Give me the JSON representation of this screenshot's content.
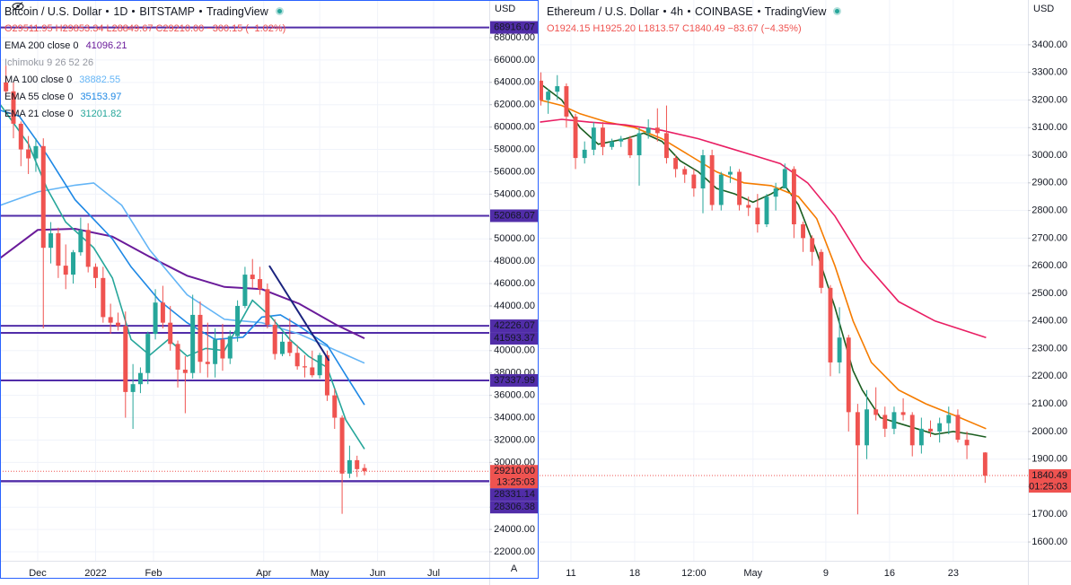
{
  "chart_data": [
    {
      "type": "candlestick",
      "title": "Bitcoin / U.S. Dollar",
      "interval": "1D",
      "exchange": "BITSTAMP",
      "source": "TradingView",
      "ohlc": {
        "open": "O29511.95",
        "high": "H29853.34",
        "low": "L28849.67",
        "close": "C29210.00",
        "change": "−300.15 (−1.02%)"
      },
      "currency": "USD",
      "scale_mode": "A",
      "grid": true,
      "up_color": "#26a69a",
      "down_color": "#ef5350",
      "xlim": [
        9.8,
        271.8
      ],
      "xticks": [
        {
          "value": 30,
          "label": "Dec"
        },
        {
          "value": 61,
          "label": "2022"
        },
        {
          "value": 92,
          "label": "Feb"
        },
        {
          "value": 151,
          "label": "Apr"
        },
        {
          "value": 181,
          "label": "May"
        },
        {
          "value": 212,
          "label": "Jun"
        },
        {
          "value": 242,
          "label": "Jul"
        }
      ],
      "ylim": [
        21200,
        71370
      ],
      "yticks": [
        {
          "value": 22000,
          "label": "22000.00"
        },
        {
          "value": 24000,
          "label": "24000.00"
        },
        {
          "value": 26000,
          "label": "26000.00"
        },
        {
          "value": 28000,
          "label": "28000.00"
        },
        {
          "value": 30000,
          "label": "30000.00"
        },
        {
          "value": 32000,
          "label": "32000.00"
        },
        {
          "value": 34000,
          "label": "34000.00"
        },
        {
          "value": 36000,
          "label": "36000.00"
        },
        {
          "value": 38000,
          "label": "38000.00"
        },
        {
          "value": 40000,
          "label": "40000.00"
        },
        {
          "value": 42000,
          "label": "42000.00"
        },
        {
          "value": 44000,
          "label": "44000.00"
        },
        {
          "value": 46000,
          "label": "46000.00"
        },
        {
          "value": 48000,
          "label": "48000.00"
        },
        {
          "value": 50000,
          "label": "50000.00"
        },
        {
          "value": 52000,
          "label": "52000.00"
        },
        {
          "value": 54000,
          "label": "54000.00"
        },
        {
          "value": 56000,
          "label": "56000.00"
        },
        {
          "value": 58000,
          "label": "58000.00"
        },
        {
          "value": 60000,
          "label": "60000.00"
        },
        {
          "value": 62000,
          "label": "62000.00"
        },
        {
          "value": 64000,
          "label": "64000.00"
        },
        {
          "value": 66000,
          "label": "66000.00"
        },
        {
          "value": 68000,
          "label": "68000.00"
        }
      ],
      "x": [
        13,
        17,
        21,
        25,
        29,
        33,
        37,
        41,
        45,
        49,
        53,
        57,
        61,
        65,
        69,
        73,
        77,
        81,
        85,
        89,
        93,
        97,
        101,
        105,
        109,
        113,
        117,
        121,
        125,
        129,
        133,
        137,
        141,
        145,
        149,
        153,
        157,
        161,
        165,
        169,
        173,
        177,
        181,
        185,
        189,
        193,
        197,
        201,
        205
      ],
      "open": [
        64000,
        63200,
        60300,
        58000,
        57200,
        58300,
        49200,
        50500,
        47600,
        46800,
        48800,
        50800,
        47500,
        46500,
        43000,
        42500,
        42200,
        36300,
        37000,
        38000,
        41500,
        44300,
        42500,
        40600,
        38300,
        38000,
        43200,
        39000,
        38800,
        41000,
        39300,
        41300,
        44000,
        46800,
        46400,
        45500,
        42300,
        39700,
        40800,
        39800,
        38600,
        38500,
        37800,
        39600,
        36000,
        34000,
        29000,
        30200,
        29500
      ],
      "high": [
        65500,
        64000,
        60500,
        59200,
        59000,
        59000,
        51500,
        51000,
        49500,
        49000,
        51900,
        51400,
        47800,
        47500,
        44200,
        43400,
        43500,
        38800,
        38500,
        41700,
        45500,
        45800,
        44000,
        40900,
        39500,
        45000,
        44400,
        42500,
        42000,
        42400,
        41800,
        44500,
        47500,
        48200,
        47500,
        46000,
        42800,
        41500,
        42900,
        40500,
        39600,
        40000,
        39800,
        40000,
        36600,
        34200,
        31500,
        30600,
        29850
      ],
      "low": [
        62800,
        59000,
        56500,
        55800,
        56000,
        42000,
        47800,
        46500,
        45500,
        46000,
        48500,
        47000,
        45600,
        42500,
        41500,
        41800,
        34000,
        33000,
        36200,
        37000,
        41000,
        42000,
        40000,
        36700,
        34400,
        37500,
        38000,
        37600,
        37600,
        38200,
        38800,
        40800,
        43800,
        45600,
        45000,
        42000,
        39200,
        39500,
        39500,
        38300,
        37600,
        37600,
        37500,
        35500,
        33000,
        25400,
        28600,
        28700,
        28850
      ],
      "close": [
        63200,
        60300,
        58000,
        57200,
        58300,
        49200,
        50500,
        47600,
        46800,
        48800,
        50800,
        47500,
        46500,
        43000,
        42500,
        42200,
        36300,
        37000,
        38000,
        41500,
        44300,
        42500,
        40600,
        38300,
        38000,
        43200,
        39000,
        38800,
        41000,
        39300,
        41300,
        44000,
        46800,
        46400,
        45500,
        42300,
        39700,
        40800,
        39800,
        38600,
        38500,
        37800,
        39600,
        36000,
        34000,
        29000,
        30200,
        29400,
        29210
      ],
      "indicators": [
        {
          "name": "EMA 200 close 0",
          "value": 41096.21,
          "color": "#6a1b9a",
          "x": [
            10,
            30,
            50,
            70,
            90,
            110,
            130,
            150,
            170,
            190,
            205
          ],
          "values": [
            48300,
            50800,
            50900,
            50200,
            48400,
            46700,
            45700,
            45500,
            44200,
            42300,
            41100
          ]
        },
        {
          "name": "Ichimoku 9 26 52 26"
        },
        {
          "name": "MA 100 close 0",
          "value": 38882.55,
          "color": "#64b5f6",
          "x": [
            10,
            30,
            50,
            60,
            75,
            90,
            110,
            130,
            150,
            170,
            190,
            205
          ],
          "values": [
            53000,
            54200,
            54800,
            55000,
            53000,
            49000,
            45000,
            42800,
            42500,
            41500,
            40000,
            38880
          ]
        },
        {
          "name": "EMA 55 close 0",
          "value": 35153.97,
          "color": "#1e88e5",
          "x": [
            10,
            20,
            35,
            50,
            70,
            80,
            95,
            110,
            125,
            140,
            150,
            160,
            170,
            185,
            195,
            205
          ],
          "values": [
            61500,
            61000,
            57500,
            53500,
            50000,
            47500,
            44500,
            42500,
            41000,
            41200,
            43000,
            43200,
            42200,
            40500,
            37800,
            35150
          ]
        },
        {
          "name": "EMA 21 close 0",
          "value": 31201.82,
          "color": "#26a69a",
          "x": [
            10,
            25,
            35,
            45,
            60,
            70,
            80,
            90,
            100,
            110,
            120,
            130,
            145,
            155,
            165,
            175,
            185,
            195,
            205
          ],
          "values": [
            62000,
            58500,
            54500,
            51500,
            49200,
            46500,
            41000,
            39600,
            41000,
            39500,
            40200,
            40000,
            44500,
            43000,
            41000,
            39500,
            38500,
            33800,
            31200
          ]
        }
      ],
      "trend_lines": [
        {
          "color": "#1a237e",
          "x": [
            154,
            186
          ],
          "values": [
            47600,
            39100
          ]
        }
      ],
      "level_color": "#512da8",
      "levels": [
        68916.07,
        52068.07,
        42226.07,
        41593.37,
        37337.99,
        28331.14,
        28306.38
      ],
      "last_price": {
        "value": 29210,
        "label": "29210.00"
      },
      "countdown": "13:25:03"
    },
    {
      "type": "candlestick",
      "title": "Ethereum / U.S. Dollar",
      "interval": "4h",
      "exchange": "COINBASE",
      "source": "TradingView",
      "ohlc": {
        "open": "O1924.15",
        "high": "H1925.20",
        "low": "L1813.57",
        "close": "C1840.49",
        "change": "−83.67 (−4.35%)"
      },
      "currency": "USD",
      "grid": true,
      "up_color": "#26a69a",
      "down_color": "#ef5350",
      "xlim": [
        7.55,
        61.2
      ],
      "xticks": [
        {
          "value": 11,
          "label": "11"
        },
        {
          "value": 18,
          "label": "18"
        },
        {
          "value": 24.5,
          "label": "12:00"
        },
        {
          "value": 31,
          "label": "May"
        },
        {
          "value": 39,
          "label": "9"
        },
        {
          "value": 46,
          "label": "16"
        },
        {
          "value": 53,
          "label": "23"
        }
      ],
      "ylim": [
        1532,
        3562
      ],
      "yticks": [
        {
          "value": 1600,
          "label": "1600.00"
        },
        {
          "value": 1700,
          "label": "1700.00"
        },
        {
          "value": 1800,
          "label": "1800.00"
        },
        {
          "value": 1900,
          "label": "1900.00"
        },
        {
          "value": 2000,
          "label": "2000.00"
        },
        {
          "value": 2100,
          "label": "2100.00"
        },
        {
          "value": 2200,
          "label": "2200.00"
        },
        {
          "value": 2300,
          "label": "2300.00"
        },
        {
          "value": 2400,
          "label": "2400.00"
        },
        {
          "value": 2500,
          "label": "2500.00"
        },
        {
          "value": 2600,
          "label": "2600.00"
        },
        {
          "value": 2700,
          "label": "2700.00"
        },
        {
          "value": 2800,
          "label": "2800.00"
        },
        {
          "value": 2900,
          "label": "2900.00"
        },
        {
          "value": 3000,
          "label": "3000.00"
        },
        {
          "value": 3100,
          "label": "3100.00"
        },
        {
          "value": 3200,
          "label": "3200.00"
        },
        {
          "value": 3300,
          "label": "3300.00"
        },
        {
          "value": 3400,
          "label": "3400.00"
        }
      ],
      "x": [
        7.7,
        8.5,
        9.5,
        10.5,
        11.5,
        12.5,
        13.5,
        14.5,
        15.5,
        16.5,
        17.5,
        18.5,
        19.5,
        20.5,
        21.5,
        22.5,
        23.5,
        24.5,
        25.5,
        26.5,
        27.5,
        28.5,
        29.5,
        30.5,
        31.5,
        32.5,
        33.5,
        34.5,
        35.5,
        36.5,
        37.5,
        38.5,
        39.5,
        40.5,
        41.5,
        42.5,
        43.5,
        44.5,
        45.5,
        46.5,
        47.5,
        48.5,
        49.5,
        50.5,
        51.5,
        52.5,
        53.5,
        54.5,
        56.5
      ],
      "open": [
        3270,
        3200,
        3230,
        3250,
        3140,
        2990,
        3020,
        3100,
        3030,
        3050,
        3060,
        3000,
        3080,
        3100,
        3080,
        2990,
        2950,
        2930,
        2880,
        3000,
        2820,
        2930,
        2940,
        2820,
        2810,
        2750,
        2850,
        2880,
        2950,
        2750,
        2700,
        2650,
        2520,
        2250,
        2340,
        2070,
        1950,
        2080,
        2060,
        2010,
        2070,
        2060,
        1950,
        2010,
        2000,
        2030,
        2060,
        1970,
        1924
      ],
      "high": [
        3300,
        3240,
        3290,
        3260,
        3150,
        3050,
        3120,
        3120,
        3060,
        3070,
        3070,
        3100,
        3130,
        3170,
        3180,
        3000,
        2960,
        2950,
        3020,
        3020,
        2940,
        2960,
        2950,
        2850,
        2860,
        2860,
        2900,
        2970,
        2960,
        2760,
        2710,
        2660,
        2530,
        2450,
        2350,
        2100,
        2150,
        2160,
        2090,
        2090,
        2120,
        2070,
        2050,
        2040,
        2050,
        2090,
        2080,
        2000,
        1925
      ],
      "low": [
        3180,
        3150,
        3200,
        3100,
        2950,
        2970,
        3000,
        3000,
        3020,
        3030,
        2990,
        2890,
        3060,
        3050,
        2970,
        2920,
        2900,
        2850,
        2790,
        2800,
        2800,
        2900,
        2800,
        2780,
        2720,
        2740,
        2800,
        2880,
        2700,
        2650,
        2600,
        2500,
        2200,
        2210,
        2000,
        1700,
        1900,
        2040,
        1980,
        1990,
        2040,
        1910,
        1920,
        1980,
        1960,
        1990,
        1960,
        1900,
        1814
      ],
      "close": [
        3200,
        3230,
        3250,
        3140,
        2990,
        3020,
        3100,
        3030,
        3050,
        3060,
        3000,
        3080,
        3100,
        3080,
        2990,
        2950,
        2930,
        2880,
        3000,
        2820,
        2930,
        2940,
        2820,
        2810,
        2750,
        2850,
        2880,
        2950,
        2750,
        2700,
        2650,
        2520,
        2250,
        2340,
        2070,
        1950,
        2080,
        2060,
        2010,
        2070,
        2060,
        1950,
        2010,
        2000,
        2030,
        2060,
        1970,
        1950,
        1840
      ],
      "indicators": [
        {
          "color": "#1b5e20",
          "x": [
            7.6,
            10,
            12,
            14,
            17,
            19,
            21,
            23,
            25,
            27,
            29,
            31,
            33,
            34.5,
            36,
            38,
            40,
            42,
            43,
            45,
            47,
            49,
            51,
            53,
            55,
            56.6
          ],
          "values": [
            3260,
            3200,
            3100,
            3040,
            3060,
            3080,
            3050,
            2980,
            2940,
            2880,
            2860,
            2830,
            2860,
            2890,
            2820,
            2650,
            2450,
            2220,
            2150,
            2050,
            2030,
            2010,
            1990,
            2000,
            1990,
            1980
          ]
        },
        {
          "color": "#f57c00",
          "x": [
            7.6,
            10,
            12,
            15,
            18,
            21,
            24,
            27,
            30,
            33,
            36,
            38,
            40,
            42,
            44,
            47,
            50,
            53,
            56.6
          ],
          "values": [
            3200,
            3180,
            3150,
            3120,
            3100,
            3060,
            3000,
            2940,
            2900,
            2890,
            2850,
            2770,
            2600,
            2400,
            2250,
            2150,
            2100,
            2060,
            2010
          ]
        },
        {
          "color": "#e91e63",
          "x": [
            7.6,
            10,
            13,
            17,
            21,
            25,
            28,
            31,
            34,
            37,
            40,
            43,
            47,
            51,
            56.6
          ],
          "values": [
            3120,
            3130,
            3120,
            3110,
            3090,
            3060,
            3030,
            3000,
            2970,
            2900,
            2780,
            2620,
            2470,
            2400,
            2340
          ]
        }
      ],
      "last_price": {
        "value": 1840.49,
        "label": "1840.49"
      },
      "countdown": "01:25:03"
    }
  ]
}
